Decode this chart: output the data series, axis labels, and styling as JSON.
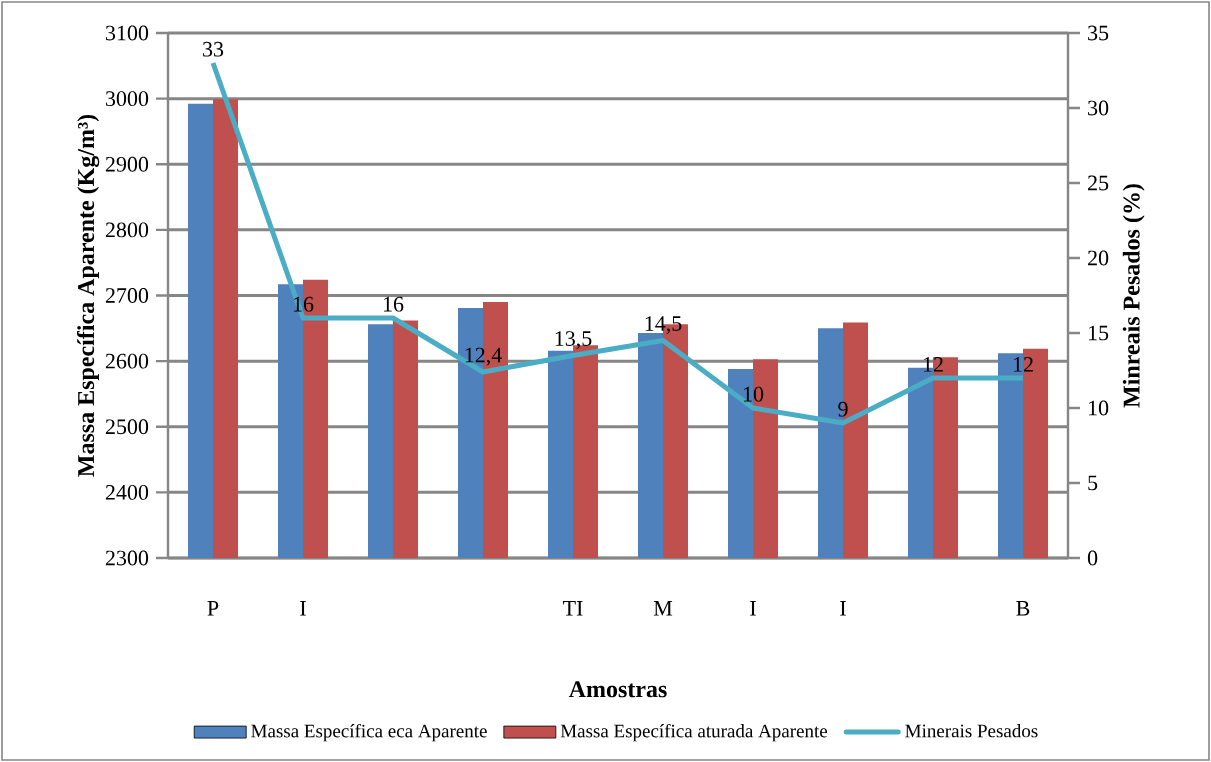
{
  "chart_data": {
    "type": "bar",
    "xlabel": "Amostras",
    "ylabel": "Massa Específica Aparente (Kg/m³)",
    "y2label": "Minreais Pesados (%)",
    "categories": [
      "P",
      "I",
      null,
      null,
      "TI",
      "M",
      "I",
      "I",
      null,
      "B"
    ],
    "series": [
      {
        "name": "Massa Específica    eca Aparente",
        "color": "#4f81bd",
        "values": [
          2992,
          2717,
          2656,
          2681,
          2616,
          2643,
          2588,
          2650,
          2590,
          2612
        ]
      },
      {
        "name": "Massa Específica    aturada Aparente",
        "color": "#c0504d",
        "values": [
          2999,
          2724,
          2662,
          2690,
          2624,
          2656,
          2603,
          2659,
          2606,
          2619
        ]
      },
      {
        "name": "Minerais Pesados",
        "type": "line",
        "axis": "y2",
        "color": "#4bacc6",
        "marker": "none",
        "line_style": "solid",
        "values": [
          33,
          16,
          16,
          12.4,
          13.5,
          14.5,
          10,
          9,
          12,
          12
        ],
        "value_labels": [
          "33",
          "16",
          "16",
          "12,4",
          "13,5",
          "14,5",
          "10",
          "9",
          "12",
          "12"
        ]
      }
    ],
    "ylim": [
      2300,
      3100
    ],
    "yticks": [
      2300,
      2400,
      2500,
      2600,
      2700,
      2800,
      2900,
      3000,
      3100
    ],
    "y2lim": [
      0,
      35
    ],
    "y2ticks": [
      0,
      5,
      10,
      15,
      20,
      25,
      30,
      35
    ],
    "grid": "y",
    "legend": "bottom"
  }
}
